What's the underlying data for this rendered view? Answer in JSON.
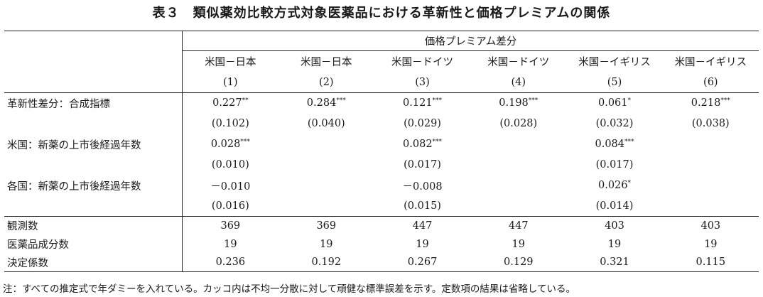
{
  "title": "表３　類似薬効比較方式対象医薬品における革新性と価格プレミアムの関係",
  "header": {
    "group_label": "価格プレミアム差分",
    "columns": [
      {
        "pair": "米国－日本",
        "num": "(1)"
      },
      {
        "pair": "米国－日本",
        "num": "(2)"
      },
      {
        "pair": "米国－ドイツ",
        "num": "(3)"
      },
      {
        "pair": "米国－ドイツ",
        "num": "(4)"
      },
      {
        "pair": "米国－イギリス",
        "num": "(5)"
      },
      {
        "pair": "米国－イギリス",
        "num": "(6)"
      }
    ]
  },
  "rows": {
    "innovation": {
      "label": "革新性差分：合成指標",
      "coef": [
        "0.227",
        "0.284",
        "0.121",
        "0.198",
        "0.061",
        "0.218"
      ],
      "stars": [
        "**",
        "***",
        "***",
        "***",
        "*",
        "***"
      ],
      "se": [
        "(0.102)",
        "(0.040)",
        "(0.029)",
        "(0.028)",
        "(0.032)",
        "(0.038)"
      ]
    },
    "us_years": {
      "label": "米国：新薬の上市後経過年数",
      "coef": [
        "0.028",
        "",
        "0.082",
        "",
        "0.084",
        ""
      ],
      "stars": [
        "***",
        "",
        "***",
        "",
        "***",
        ""
      ],
      "se": [
        "(0.010)",
        "",
        "(0.017)",
        "",
        "(0.017)",
        ""
      ]
    },
    "other_years": {
      "label": "各国：新薬の上市後経過年数",
      "coef": [
        "－0.010",
        "",
        "－0.008",
        "",
        "0.026",
        ""
      ],
      "stars": [
        "",
        "",
        "",
        "",
        "*",
        ""
      ],
      "se": [
        "(0.016)",
        "",
        "(0.015)",
        "",
        "(0.014)",
        ""
      ]
    }
  },
  "stats": {
    "n_obs": {
      "label": "観測数",
      "values": [
        "369",
        "369",
        "447",
        "447",
        "403",
        "403"
      ]
    },
    "n_ingredients": {
      "label": "医薬品成分数",
      "values": [
        "19",
        "19",
        "19",
        "19",
        "19",
        "19"
      ]
    },
    "r2": {
      "label": "決定係数",
      "values": [
        "0.236",
        "0.192",
        "0.267",
        "0.129",
        "0.321",
        "0.115"
      ]
    }
  },
  "note": "注：すべての推定式で年ダミーを入れている。カッコ内は不均一分散に対して頑健な標準誤差を示す。定数項の結果は省略している。"
}
